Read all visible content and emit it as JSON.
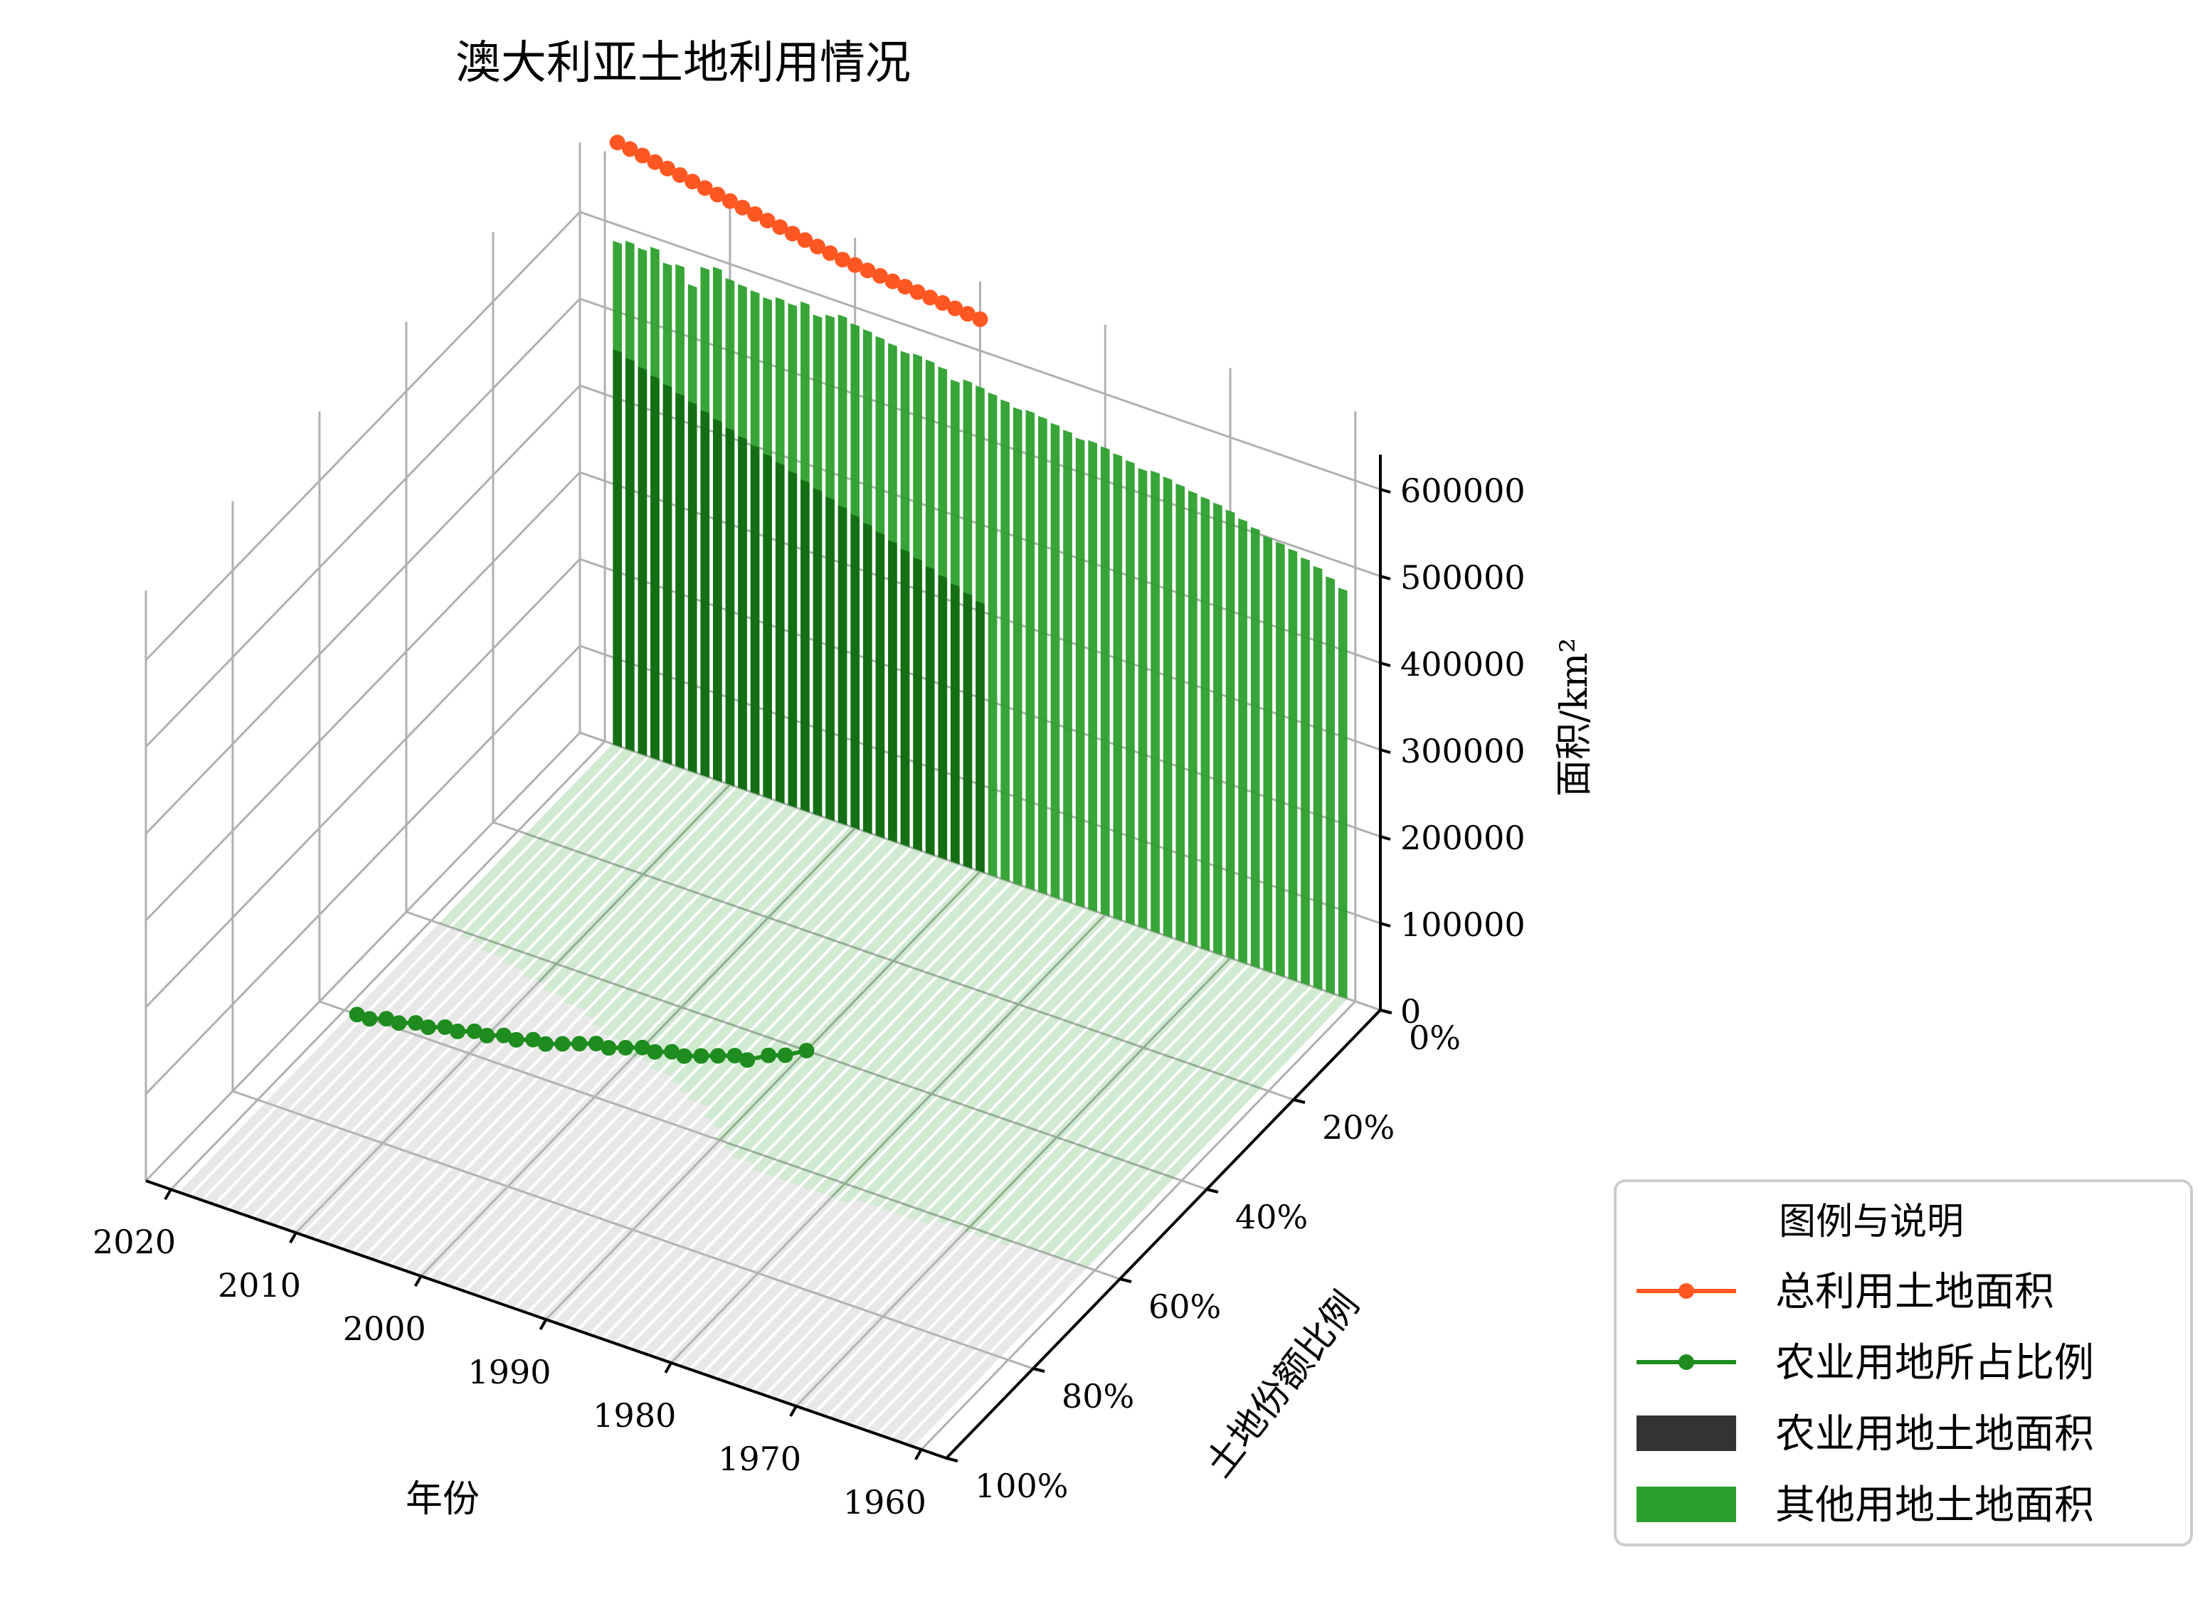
{
  "chart_data": {
    "type": "bar3d",
    "title": "澳大利亚土地利用情况",
    "xlabel": "年份",
    "ylabel": "土地份额比例",
    "zlabel": "面积/km²",
    "x": [
      1961,
      1962,
      1963,
      1964,
      1965,
      1966,
      1967,
      1968,
      1969,
      1970,
      1971,
      1972,
      1973,
      1974,
      1975,
      1976,
      1977,
      1978,
      1979,
      1980,
      1981,
      1982,
      1983,
      1984,
      1985,
      1986,
      1987,
      1988,
      1989,
      1990,
      1991,
      1992,
      1993,
      1994,
      1995,
      1996,
      1997,
      1998,
      1999,
      2000,
      2001,
      2002,
      2003,
      2004,
      2005,
      2006,
      2007,
      2008,
      2009,
      2010,
      2011,
      2012,
      2013,
      2014,
      2015,
      2016,
      2017,
      2018,
      2019
    ],
    "xticks": [
      "1960",
      "1970",
      "1980",
      "1990",
      "2000",
      "2010",
      "2020"
    ],
    "yticks": [
      "0%",
      "20%",
      "40%",
      "60%",
      "80%",
      "100%"
    ],
    "zticks": [
      "0",
      "100000",
      "200000",
      "300000",
      "400000",
      "500000",
      "600000"
    ],
    "zlim": [
      0,
      600000
    ],
    "series": [
      {
        "name": "总利用土地面积",
        "type": "line",
        "color": "#ff5722",
        "values": [
          6480000,
          6490000,
          6500000,
          6510000,
          6520000,
          6530000,
          6540000,
          6550000,
          6560000,
          6570000,
          6580000,
          6590000,
          6600000,
          6610000,
          6620000,
          6630000,
          6640000,
          6650000,
          6660000,
          6670000,
          6680000,
          6690000,
          6700000,
          6710000,
          6720000,
          6730000,
          6740000,
          6750000,
          6760000,
          6770000,
          6780000,
          6790000,
          6800000,
          6810000,
          6820000,
          6830000,
          6840000,
          6850000,
          6860000,
          6870000,
          6880000,
          6900000,
          6920000,
          6940000,
          6960000,
          6980000,
          7000000,
          7020000,
          7040000,
          7060000,
          7080000,
          7100000,
          7120000,
          7140000,
          7160000,
          7180000,
          7200000,
          7220000,
          7240000
        ]
      },
      {
        "name": "农业用地所占比例",
        "type": "line",
        "color": "#1e8c1e",
        "values": [
          0.6,
          0.6,
          0.6,
          0.6,
          0.6,
          0.6,
          0.61,
          0.61,
          0.61,
          0.61,
          0.61,
          0.61,
          0.62,
          0.62,
          0.62,
          0.62,
          0.62,
          0.62,
          0.63,
          0.63,
          0.63,
          0.63,
          0.63,
          0.63,
          0.63,
          0.63,
          0.62,
          0.62,
          0.61,
          0.6,
          0.58,
          0.57,
          0.55,
          0.55,
          0.54,
          0.53,
          0.52,
          0.52,
          0.51,
          0.51,
          0.5,
          0.49,
          0.49,
          0.48,
          0.47,
          0.46,
          0.46,
          0.45,
          0.45,
          0.44,
          0.44,
          0.43,
          0.43,
          0.42,
          0.42,
          0.41,
          0.41,
          0.4,
          0.4
        ]
      },
      {
        "name": "农业用地土地面积",
        "type": "bar",
        "color": "#333333",
        "values": [
          280000,
          281000,
          282000,
          283000,
          284000,
          285000,
          286000,
          287000,
          288000,
          289000,
          290000,
          291000,
          292000,
          293000,
          294000,
          295000,
          296000,
          297000,
          298000,
          299000,
          300000,
          301000,
          302000,
          303000,
          304000,
          305000,
          306000,
          307000,
          308000,
          310000,
          315000,
          320000,
          325000,
          330000,
          335000,
          340000,
          345000,
          350000,
          355000,
          360000,
          365000,
          370000,
          375000,
          380000,
          385000,
          390000,
          395000,
          400000,
          405000,
          410000,
          415000,
          420000,
          425000,
          430000,
          435000,
          440000,
          445000,
          450000,
          455000
        ]
      },
      {
        "name": "其他用地土地面积",
        "type": "bar",
        "color": "#2ca02c",
        "values": [
          470000,
          478000,
          485000,
          490000,
          495000,
          498000,
          500000,
          505000,
          510000,
          515000,
          518000,
          520000,
          522000,
          525000,
          528000,
          530000,
          528000,
          532000,
          535000,
          538000,
          540000,
          538000,
          542000,
          545000,
          548000,
          550000,
          548000,
          552000,
          555000,
          558000,
          560000,
          555000,
          565000,
          568000,
          570000,
          568000,
          572000,
          575000,
          578000,
          580000,
          585000,
          580000,
          575000,
          585000,
          578000,
          580000,
          575000,
          578000,
          580000,
          582000,
          590000,
          585000,
          560000,
          578000,
          575000,
          588000,
          582000,
          585000,
          580000
        ]
      }
    ],
    "legend": {
      "title": "图例与说明",
      "placement": "lower-right",
      "entries": [
        "总利用土地面积",
        "农业用地所占比例",
        "农业用地土地面积",
        "其他用地土地面积"
      ]
    },
    "grid": true
  }
}
